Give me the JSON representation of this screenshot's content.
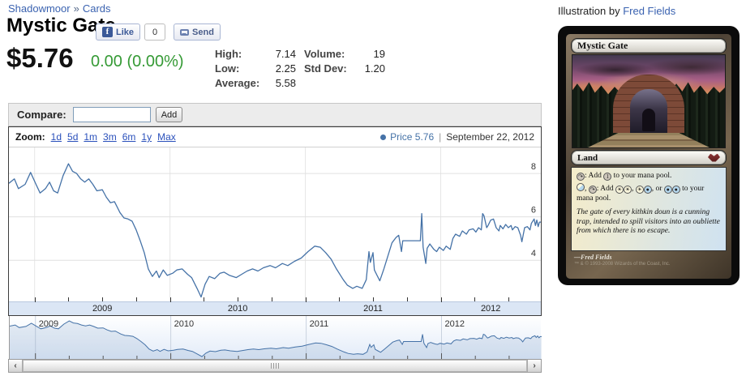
{
  "page": {
    "breadcrumb": [
      {
        "label": "Shadowmoor"
      },
      {
        "label": "Cards"
      }
    ],
    "breadcrumb_separator": "»",
    "title": "Mystic Gate"
  },
  "social": {
    "like_label": "Like",
    "like_count": "0",
    "send_label": "Send"
  },
  "price": {
    "current": "$5.76",
    "change": "0.00 (0.00%)",
    "change_color": "#359a35"
  },
  "stats": {
    "col1": [
      {
        "label": "High:",
        "value": "7.14"
      },
      {
        "label": "Low:",
        "value": "2.25"
      },
      {
        "label": "Average:",
        "value": "5.58"
      }
    ],
    "col2": [
      {
        "label": "Volume:",
        "value": "19"
      },
      {
        "label": "Std Dev:",
        "value": "1.20"
      }
    ]
  },
  "compare": {
    "label": "Compare:",
    "input_value": "",
    "add_label": "Add"
  },
  "toolbar": {
    "zoom_label": "Zoom:",
    "ranges": [
      "1d",
      "5d",
      "1m",
      "3m",
      "6m",
      "1y",
      "Max"
    ],
    "legend_label": "Price 5.76",
    "legend_separator": "|",
    "legend_date": "September 22, 2012"
  },
  "scrollbar": {
    "left_arrow": "‹",
    "right_arrow": "›"
  },
  "illustration": {
    "prefix": "Illustration by",
    "artist": "Fred Fields"
  },
  "card": {
    "name": "Mystic Gate",
    "type_line": "Land",
    "rules": [
      "{T}: Add {1} to your mana pool.",
      "{W/U}, {T}: Add {W}{W}, {W}{U}, or {U}{U} to your mana pool."
    ],
    "flavor": "The gate of every kithkin doun is a cunning trap, intended to spill visitors into an oubliette from which there is no escape.",
    "artist_credit": "—Fred Fields",
    "copyright": "™ & © 1993-2008 Wizards of the Coast, Inc.",
    "mana_colors": {
      "T": "#cdc6bb",
      "1": "#cdc6bb",
      "W": "#fffbe0",
      "U": "#b5d8ee"
    },
    "mana_glyphs": {
      "T": "↷",
      "1": "1",
      "W": "☀",
      "U": "●"
    }
  },
  "chart_data": {
    "type": "line",
    "title": "",
    "xlabel": "",
    "ylabel": "",
    "xlim": [
      2008.81,
      2012.74
    ],
    "ylim": [
      2.1,
      9.2
    ],
    "yticks": [
      4,
      6,
      8
    ],
    "xticks": [
      2009,
      2010,
      2011,
      2012
    ],
    "grid": true,
    "legend_position": "top-right",
    "last_point": {
      "label": "Price",
      "value": 5.76,
      "date": "September 22, 2012"
    },
    "series": [
      {
        "name": "Price",
        "color": "#4572a7",
        "points": [
          [
            2008.81,
            7.55
          ],
          [
            2008.85,
            7.75
          ],
          [
            2008.88,
            7.3
          ],
          [
            2008.93,
            7.5
          ],
          [
            2008.97,
            8.05
          ],
          [
            2009.01,
            7.5
          ],
          [
            2009.04,
            7.1
          ],
          [
            2009.08,
            7.3
          ],
          [
            2009.11,
            7.6
          ],
          [
            2009.14,
            7.2
          ],
          [
            2009.17,
            7.1
          ],
          [
            2009.21,
            7.9
          ],
          [
            2009.25,
            8.45
          ],
          [
            2009.28,
            8.1
          ],
          [
            2009.31,
            8.0
          ],
          [
            2009.34,
            7.75
          ],
          [
            2009.37,
            7.6
          ],
          [
            2009.4,
            7.75
          ],
          [
            2009.43,
            7.5
          ],
          [
            2009.46,
            7.2
          ],
          [
            2009.5,
            7.25
          ],
          [
            2009.53,
            6.9
          ],
          [
            2009.56,
            6.65
          ],
          [
            2009.59,
            6.7
          ],
          [
            2009.63,
            6.2
          ],
          [
            2009.66,
            5.95
          ],
          [
            2009.69,
            5.9
          ],
          [
            2009.72,
            5.8
          ],
          [
            2009.75,
            5.4
          ],
          [
            2009.78,
            4.9
          ],
          [
            2009.81,
            4.35
          ],
          [
            2009.84,
            3.6
          ],
          [
            2009.87,
            3.25
          ],
          [
            2009.9,
            3.5
          ],
          [
            2009.92,
            3.2
          ],
          [
            2009.95,
            3.55
          ],
          [
            2009.98,
            3.3
          ],
          [
            2010.02,
            3.4
          ],
          [
            2010.05,
            3.55
          ],
          [
            2010.09,
            3.6
          ],
          [
            2010.13,
            3.35
          ],
          [
            2010.16,
            3.2
          ],
          [
            2010.2,
            2.7
          ],
          [
            2010.23,
            2.3
          ],
          [
            2010.26,
            2.9
          ],
          [
            2010.29,
            3.25
          ],
          [
            2010.33,
            3.15
          ],
          [
            2010.37,
            3.4
          ],
          [
            2010.4,
            3.45
          ],
          [
            2010.44,
            3.3
          ],
          [
            2010.49,
            3.2
          ],
          [
            2010.53,
            3.35
          ],
          [
            2010.57,
            3.5
          ],
          [
            2010.61,
            3.6
          ],
          [
            2010.65,
            3.5
          ],
          [
            2010.69,
            3.65
          ],
          [
            2010.74,
            3.75
          ],
          [
            2010.78,
            3.65
          ],
          [
            2010.83,
            3.85
          ],
          [
            2010.87,
            3.75
          ],
          [
            2010.92,
            3.95
          ],
          [
            2010.97,
            4.1
          ],
          [
            2011.02,
            4.4
          ],
          [
            2011.07,
            4.65
          ],
          [
            2011.11,
            4.6
          ],
          [
            2011.15,
            4.35
          ],
          [
            2011.19,
            4.05
          ],
          [
            2011.23,
            3.6
          ],
          [
            2011.28,
            3.1
          ],
          [
            2011.31,
            2.85
          ],
          [
            2011.35,
            2.7
          ],
          [
            2011.38,
            2.8
          ],
          [
            2011.42,
            2.7
          ],
          [
            2011.45,
            3.1
          ],
          [
            2011.47,
            4.4
          ],
          [
            2011.48,
            3.9
          ],
          [
            2011.5,
            4.35
          ],
          [
            2011.51,
            3.55
          ],
          [
            2011.53,
            3.3
          ],
          [
            2011.55,
            3.05
          ],
          [
            2011.58,
            3.6
          ],
          [
            2011.61,
            4.2
          ],
          [
            2011.64,
            4.8
          ],
          [
            2011.67,
            5.05
          ],
          [
            2011.69,
            5.15
          ],
          [
            2011.71,
            4.4
          ],
          [
            2011.72,
            4.9
          ],
          [
            2011.85,
            4.9
          ],
          [
            2011.86,
            6.15
          ],
          [
            2011.87,
            4.6
          ],
          [
            2011.89,
            3.85
          ],
          [
            2011.9,
            4.55
          ],
          [
            2011.92,
            4.75
          ],
          [
            2011.95,
            4.5
          ],
          [
            2011.97,
            4.4
          ],
          [
            2011.99,
            4.6
          ],
          [
            2012.02,
            4.45
          ],
          [
            2012.04,
            4.65
          ],
          [
            2012.07,
            4.5
          ],
          [
            2012.09,
            5.0
          ],
          [
            2012.11,
            5.2
          ],
          [
            2012.14,
            5.1
          ],
          [
            2012.16,
            5.35
          ],
          [
            2012.19,
            5.2
          ],
          [
            2012.21,
            5.4
          ],
          [
            2012.24,
            5.45
          ],
          [
            2012.26,
            5.3
          ],
          [
            2012.28,
            5.5
          ],
          [
            2012.3,
            5.4
          ],
          [
            2012.31,
            6.15
          ],
          [
            2012.32,
            6.05
          ],
          [
            2012.34,
            5.5
          ],
          [
            2012.35,
            5.6
          ],
          [
            2012.37,
            5.85
          ],
          [
            2012.39,
            5.9
          ],
          [
            2012.41,
            5.5
          ],
          [
            2012.43,
            5.35
          ],
          [
            2012.44,
            5.6
          ],
          [
            2012.46,
            5.45
          ],
          [
            2012.48,
            5.65
          ],
          [
            2012.5,
            5.5
          ],
          [
            2012.52,
            5.6
          ],
          [
            2012.53,
            5.4
          ],
          [
            2012.55,
            5.55
          ],
          [
            2012.57,
            5.5
          ],
          [
            2012.59,
            5.15
          ],
          [
            2012.6,
            4.85
          ],
          [
            2012.62,
            5.5
          ],
          [
            2012.64,
            5.55
          ],
          [
            2012.66,
            5.4
          ],
          [
            2012.67,
            5.7
          ],
          [
            2012.69,
            5.9
          ],
          [
            2012.7,
            5.6
          ],
          [
            2012.71,
            5.85
          ],
          [
            2012.72,
            5.55
          ],
          [
            2012.73,
            5.76
          ],
          [
            2012.74,
            5.76
          ]
        ]
      }
    ],
    "navigator": {
      "type": "area",
      "uses_same_series": true,
      "ylim": [
        1.9,
        9.3
      ],
      "fill": "rgba(69,114,167,0.13)"
    }
  }
}
